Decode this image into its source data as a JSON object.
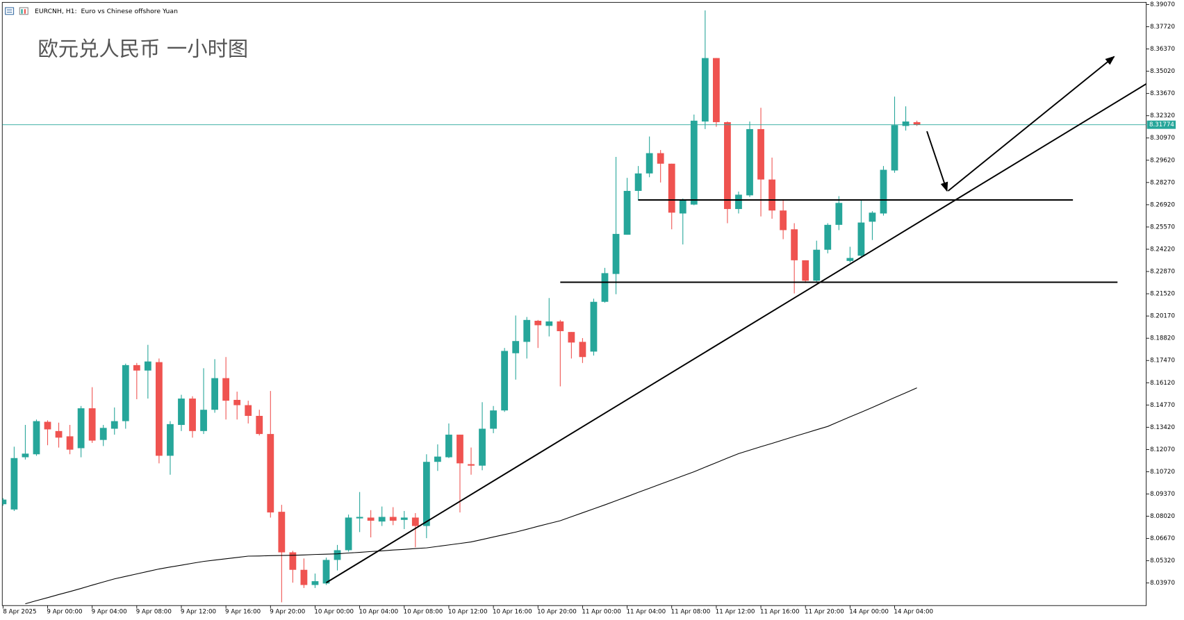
{
  "chart_data": {
    "type": "candlestick",
    "title": "EURCNH, H1:  Euro vs Chinese offshore Yuan",
    "annotation": "欧元兑人民币 一小时图",
    "up_color": "#26a69a",
    "down_color": "#ef5350",
    "grid": false,
    "categories": [
      "8 Apr 2025",
      null,
      null,
      null,
      "9 Apr 00:00",
      null,
      null,
      null,
      "9 Apr 04:00",
      null,
      null,
      null,
      "9 Apr 08:00",
      null,
      null,
      null,
      "9 Apr 12:00",
      null,
      null,
      null,
      "9 Apr 16:00",
      null,
      null,
      null,
      "9 Apr 20:00",
      null,
      null,
      null,
      "10 Apr 00:00",
      null,
      null,
      null,
      "10 Apr 04:00",
      null,
      null,
      null,
      "10 Apr 08:00",
      null,
      null,
      null,
      "10 Apr 12:00",
      null,
      null,
      null,
      "10 Apr 16:00",
      null,
      null,
      null,
      "10 Apr 20:00",
      null,
      null,
      null,
      "11 Apr 00:00",
      null,
      null,
      null,
      "11 Apr 04:00",
      null,
      null,
      null,
      "11 Apr 08:00",
      null,
      null,
      null,
      "11 Apr 12:00",
      null,
      null,
      null,
      "11 Apr 16:00",
      null,
      null,
      null,
      "11 Apr 20:00",
      null,
      null,
      null,
      "14 Apr 00:00",
      null,
      null,
      null,
      "14 Apr 04:00",
      null,
      null
    ],
    "open": [
      8.0875,
      8.0843,
      8.116,
      8.1178,
      8.1375,
      8.1319,
      8.1287,
      8.1215,
      8.1457,
      8.1265,
      8.1333,
      8.1379,
      8.1719,
      8.1686,
      8.1737,
      8.1169,
      8.1356,
      8.1516,
      8.1319,
      8.1448,
      8.164,
      8.1508,
      8.1476,
      8.1411,
      8.1301,
      8.0829,
      8.0583,
      8.0477,
      8.0385,
      8.0394,
      8.0537,
      8.0596,
      8.0789,
      8.0794,
      8.077,
      8.0798,
      8.078,
      8.0794,
      8.0743,
      8.1132,
      8.116,
      8.1297,
      8.1118,
      8.1109,
      8.1333,
      8.1444,
      8.1791,
      8.186,
      8.1988,
      8.1957,
      8.1984,
      8.192,
      8.186,
      8.1801,
      8.2103,
      8.2272,
      8.251,
      8.2776,
      8.2882,
      8.3005,
      8.2941,
      8.2639,
      8.2693,
      8.3197,
      8.3582,
      8.3193,
      8.2666,
      8.2749,
      8.3151,
      8.2845,
      8.2657,
      8.2543,
      8.2355,
      8.2231,
      8.2419,
      8.257,
      8.2351,
      8.2383,
      8.2589,
      8.2639,
      8.29,
      8.317,
      8.3193
    ],
    "high": [
      8.0912,
      8.1224,
      8.1356,
      8.1389,
      8.1384,
      8.137,
      8.1356,
      8.1471,
      8.1585,
      8.1356,
      8.1462,
      8.1728,
      8.1732,
      8.1842,
      8.1759,
      8.1379,
      8.1539,
      8.153,
      8.17,
      8.1755,
      8.1768,
      8.1558,
      8.1503,
      8.1448,
      8.1562,
      8.0871,
      8.0592,
      8.0546,
      8.0454,
      8.0551,
      8.0628,
      8.0812,
      8.0949,
      8.0839,
      8.0861,
      8.0857,
      8.0834,
      8.0821,
      8.1178,
      8.1238,
      8.1365,
      8.1297,
      8.1219,
      8.1494,
      8.1471,
      8.1823,
      8.202,
      8.2011,
      8.1993,
      8.2126,
      8.1993,
      8.192,
      8.1883,
      8.2122,
      8.2309,
      8.2982,
      8.2855,
      8.2927,
      8.3106,
      8.3024,
      8.2941,
      8.273,
      8.3239,
      8.3871,
      8.3582,
      8.3197,
      8.2772,
      8.3197,
      8.328,
      8.2978,
      8.2726,
      8.258,
      8.2355,
      8.2474,
      8.258,
      8.2744,
      8.2437,
      8.2717,
      8.2653,
      8.2927,
      8.3348,
      8.3289,
      8.3202
    ],
    "low": [
      8.0866,
      8.0834,
      8.1146,
      8.1169,
      8.1233,
      8.1219,
      8.1178,
      8.116,
      8.1247,
      8.1228,
      8.1297,
      8.1333,
      8.1512,
      8.1516,
      8.1123,
      8.1054,
      8.1319,
      8.1279,
      8.1301,
      8.143,
      8.1389,
      8.1389,
      8.1365,
      8.1292,
      8.0794,
      8.028,
      8.0399,
      8.0367,
      8.0367,
      8.0385,
      8.0473,
      8.0587,
      8.0706,
      8.0674,
      8.0743,
      8.0748,
      8.0724,
      8.0614,
      8.0669,
      8.1077,
      8.1155,
      8.0825,
      8.1054,
      8.1081,
      8.1306,
      8.1435,
      8.1631,
      8.1759,
      8.1823,
      8.1893,
      8.159,
      8.1759,
      8.1732,
      8.1777,
      8.2098,
      8.2149,
      8.251,
      8.2717,
      8.2859,
      8.2827,
      8.2543,
      8.2451,
      8.2689,
      8.3151,
      8.3165,
      8.258,
      8.2639,
      8.2739,
      8.2621,
      8.2607,
      8.2483,
      8.2154,
      8.2217,
      8.2217,
      8.2397,
      8.2538,
      8.2341,
      8.2373,
      8.2478,
      8.2626,
      8.2886,
      8.3142,
      8.317
    ],
    "close": [
      8.0903,
      8.1155,
      8.1182,
      8.1379,
      8.1329,
      8.1279,
      8.1206,
      8.1457,
      8.1261,
      8.1338,
      8.1379,
      8.1719,
      8.1686,
      8.1741,
      8.1169,
      8.1361,
      8.1516,
      8.1319,
      8.1448,
      8.164,
      8.1503,
      8.1476,
      8.1411,
      8.1301,
      8.0825,
      8.0583,
      8.0477,
      8.0385,
      8.0408,
      8.0537,
      8.0596,
      8.0794,
      8.0798,
      8.0775,
      8.0798,
      8.0775,
      8.0794,
      8.0743,
      8.1132,
      8.1164,
      8.1297,
      8.1123,
      8.1109,
      8.1333,
      8.1444,
      8.1805,
      8.1865,
      8.1993,
      8.1961,
      8.1984,
      8.1925,
      8.1856,
      8.1768,
      8.2103,
      8.2277,
      8.2515,
      8.2776,
      8.2882,
      8.3005,
      8.2941,
      8.2644,
      8.2721,
      8.3202,
      8.3582,
      8.3193,
      8.2666,
      8.2753,
      8.3151,
      8.2845,
      8.2657,
      8.2538,
      8.2355,
      8.2231,
      8.2419,
      8.257,
      8.2703,
      8.2369,
      8.2584,
      8.2644,
      8.2904,
      8.3175,
      8.3197,
      8.31774
    ],
    "ma": {
      "color": "#000000",
      "values": [
        null,
        null,
        8.0271,
        8.029,
        8.0308,
        8.0327,
        8.0345,
        8.0364,
        8.0384,
        8.0403,
        8.0422,
        8.0437,
        8.0452,
        8.0467,
        8.0482,
        8.0494,
        8.0505,
        8.0517,
        8.0528,
        8.0536,
        8.0544,
        8.0552,
        8.056,
        8.0561,
        8.0563,
        8.0564,
        8.0565,
        8.0567,
        8.057,
        8.0572,
        8.0574,
        8.0579,
        8.0583,
        8.0588,
        8.0592,
        8.0597,
        8.0601,
        8.0606,
        8.061,
        8.0619,
        8.0628,
        8.0637,
        8.0646,
        8.0661,
        8.0676,
        8.0691,
        8.0706,
        8.0723,
        8.0741,
        8.0758,
        8.0775,
        8.0799,
        8.0823,
        8.0847,
        8.0871,
        8.0896,
        8.0921,
        8.0947,
        8.0972,
        8.0997,
        8.1022,
        8.1047,
        8.1072,
        8.11,
        8.1127,
        8.1155,
        8.1182,
        8.1203,
        8.1224,
        8.1244,
        8.1265,
        8.1286,
        8.1306,
        8.1327,
        8.1347,
        8.1376,
        8.1405,
        8.1433,
        8.1462,
        8.1492,
        8.1522,
        8.1551,
        8.1581
      ]
    },
    "drawings": [
      {
        "x": [
          57,
          96
        ],
        "y": [
          8.2721,
          8.2721
        ]
      },
      {
        "x": [
          50,
          100
        ],
        "y": [
          8.2222,
          8.2222
        ]
      },
      {
        "x": [
          29,
          102.6
        ],
        "y": [
          8.0399,
          8.3426
        ]
      },
      {
        "x": [
          82.9,
          84.7
        ],
        "y": [
          8.3138,
          8.2776
        ],
        "arrow": true
      },
      {
        "x": [
          84.8,
          99.7
        ],
        "y": [
          8.2776,
          8.3591
        ],
        "arrow": true
      }
    ],
    "current_price": {
      "value": 8.31774,
      "label": "8.31774",
      "color": "#26a69a"
    },
    "ylim": [
      8.026,
      8.392
    ],
    "yticks": [
      {
        "value": 8.3907,
        "label": "8.39070"
      },
      {
        "value": 8.3772,
        "label": "8.37720"
      },
      {
        "value": 8.3637,
        "label": "8.36370"
      },
      {
        "value": 8.3502,
        "label": "8.35020"
      },
      {
        "value": 8.3367,
        "label": "8.33670"
      },
      {
        "value": 8.3232,
        "label": "8.32320"
      },
      {
        "value": 8.3097,
        "label": "8.30970"
      },
      {
        "value": 8.2962,
        "label": "8.29620"
      },
      {
        "value": 8.2827,
        "label": "8.28270"
      },
      {
        "value": 8.2692,
        "label": "8.26920"
      },
      {
        "value": 8.2557,
        "label": "8.25570"
      },
      {
        "value": 8.2422,
        "label": "8.24220"
      },
      {
        "value": 8.2287,
        "label": "8.22870"
      },
      {
        "value": 8.2152,
        "label": "8.21520"
      },
      {
        "value": 8.2017,
        "label": "8.20170"
      },
      {
        "value": 8.1882,
        "label": "8.18820"
      },
      {
        "value": 8.1747,
        "label": "8.17470"
      },
      {
        "value": 8.1612,
        "label": "8.16120"
      },
      {
        "value": 8.1477,
        "label": "8.14770"
      },
      {
        "value": 8.1342,
        "label": "8.13420"
      },
      {
        "value": 8.1207,
        "label": "8.12070"
      },
      {
        "value": 8.1072,
        "label": "8.10720"
      },
      {
        "value": 8.0937,
        "label": "8.09370"
      },
      {
        "value": 8.0802,
        "label": "8.08020"
      },
      {
        "value": 8.0667,
        "label": "8.06670"
      },
      {
        "value": 8.0532,
        "label": "8.05320"
      },
      {
        "value": 8.0397,
        "label": "8.03970"
      }
    ]
  }
}
